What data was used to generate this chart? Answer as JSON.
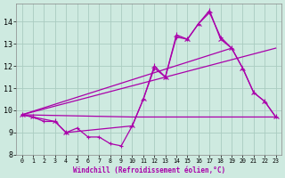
{
  "background_color": "#ceeae0",
  "grid_color": "#aaccc0",
  "line_color": "#aa00aa",
  "xlabel": "Windchill (Refroidissement éolien,°C)",
  "xlim": [
    -0.5,
    23.5
  ],
  "ylim": [
    8.0,
    14.8
  ],
  "yticks": [
    8,
    9,
    10,
    11,
    12,
    13,
    14
  ],
  "xticks": [
    0,
    1,
    2,
    3,
    4,
    5,
    6,
    7,
    8,
    9,
    10,
    11,
    12,
    13,
    14,
    15,
    16,
    17,
    18,
    19,
    20,
    21,
    22,
    23
  ],
  "series1_x": [
    0,
    1,
    2,
    3,
    4,
    5,
    6,
    7,
    8,
    9,
    10,
    11,
    12,
    13,
    14,
    15,
    16,
    17,
    18,
    19,
    20,
    21,
    22,
    23
  ],
  "series1_y": [
    9.8,
    9.7,
    9.5,
    9.5,
    9.0,
    9.2,
    8.8,
    8.8,
    8.5,
    8.4,
    9.3,
    10.5,
    11.9,
    11.5,
    13.3,
    13.2,
    13.9,
    14.4,
    13.3,
    12.8,
    11.9,
    10.8,
    10.4,
    9.7
  ],
  "series2_x": [
    0,
    1,
    3,
    4,
    10,
    11,
    12,
    13,
    14,
    15,
    16,
    17,
    18,
    19,
    20,
    21,
    22,
    23
  ],
  "series2_y": [
    9.8,
    9.7,
    9.5,
    9.0,
    9.3,
    10.5,
    12.0,
    11.5,
    13.4,
    13.2,
    13.9,
    14.5,
    13.2,
    12.8,
    11.9,
    10.8,
    10.4,
    9.7
  ],
  "line3_x": [
    0,
    23
  ],
  "line3_y": [
    9.8,
    12.8
  ],
  "line4_x": [
    0,
    10,
    23
  ],
  "line4_y": [
    9.8,
    9.7,
    9.7
  ]
}
